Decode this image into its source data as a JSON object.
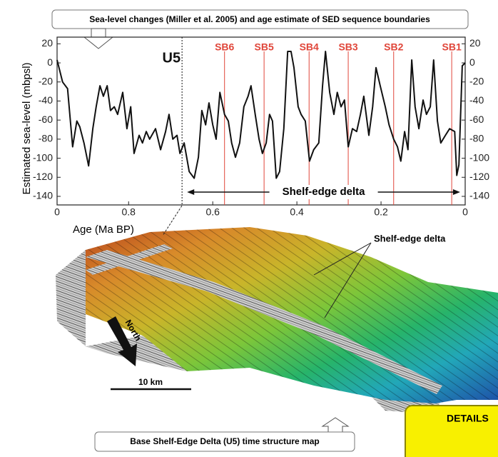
{
  "chart_data": {
    "type": "line",
    "title": "Sea-level changes (Miller et al. 2005) and age estimate of SED sequence boundaries",
    "y_label": "Estimated sea-level (mbpsl)",
    "x_label": "Age (Ma BP)",
    "x_left_end_label": "0",
    "xlim": [
      0.97,
      0
    ],
    "xticks": [
      0.8,
      0.6,
      0.4,
      0.2,
      0
    ],
    "ylim": [
      -149,
      27
    ],
    "yticks": [
      20,
      0,
      -20,
      -40,
      -60,
      -80,
      -100,
      -120,
      -140
    ],
    "y2lim": [
      -149,
      27
    ],
    "y2ticks": [
      20,
      0,
      -20,
      -40,
      -60,
      -80,
      -100,
      -120,
      -140
    ],
    "series": [
      {
        "color": "#111111",
        "x": [
          0.97,
          0.957,
          0.945,
          0.933,
          0.923,
          0.916,
          0.906,
          0.895,
          0.885,
          0.877,
          0.868,
          0.86,
          0.851,
          0.843,
          0.834,
          0.826,
          0.814,
          0.804,
          0.795,
          0.787,
          0.775,
          0.767,
          0.758,
          0.75,
          0.736,
          0.724,
          0.712,
          0.704,
          0.695,
          0.685,
          0.678,
          0.668,
          0.656,
          0.644,
          0.634,
          0.626,
          0.617,
          0.609,
          0.6,
          0.592,
          0.583,
          0.572,
          0.563,
          0.555,
          0.546,
          0.536,
          0.526,
          0.516,
          0.509,
          0.499,
          0.49,
          0.482,
          0.473,
          0.465,
          0.458,
          0.449,
          0.441,
          0.431,
          0.422,
          0.414,
          0.407,
          0.397,
          0.39,
          0.38,
          0.37,
          0.36,
          0.348,
          0.339,
          0.332,
          0.322,
          0.312,
          0.304,
          0.295,
          0.287,
          0.278,
          0.268,
          0.258,
          0.249,
          0.241,
          0.229,
          0.22,
          0.212,
          0.202,
          0.19,
          0.181,
          0.17,
          0.161,
          0.153,
          0.144,
          0.136,
          0.127,
          0.119,
          0.11,
          0.1,
          0.092,
          0.083,
          0.075,
          0.066,
          0.058,
          0.047,
          0.037,
          0.025,
          0.02,
          0.015,
          0.007,
          0
        ],
        "values": [
          3,
          -20,
          -27,
          -88,
          -61,
          -67,
          -84,
          -108,
          -69,
          -46,
          -24,
          -35,
          -24,
          -50,
          -46,
          -54,
          -31,
          -69,
          -46,
          -95,
          -76,
          -84,
          -72,
          -80,
          -69,
          -91,
          -72,
          -54,
          -80,
          -76,
          -95,
          -84,
          -114,
          -121,
          -99,
          -50,
          -65,
          -42,
          -65,
          -80,
          -31,
          -54,
          -61,
          -84,
          -99,
          -84,
          -46,
          -35,
          -24,
          -54,
          -80,
          -95,
          -84,
          -54,
          -61,
          -121,
          -114,
          -69,
          12,
          12,
          -5,
          -46,
          -54,
          -61,
          -103,
          -91,
          -84,
          -24,
          12,
          -31,
          -54,
          -31,
          -46,
          -39,
          -88,
          -69,
          -72,
          -54,
          -35,
          -76,
          -46,
          -5,
          -24,
          -46,
          -65,
          -80,
          -88,
          -103,
          -72,
          -91,
          3,
          -46,
          -69,
          -39,
          -54,
          -46,
          3,
          -61,
          -84,
          -76,
          -69,
          -72,
          -118,
          -107,
          -3,
          0
        ]
      }
    ],
    "boundaries_color": "#e0463a",
    "boundaries": [
      {
        "label": "U5",
        "x": 0.673
      },
      {
        "label": "SB6",
        "x": 0.572
      },
      {
        "label": "SB5",
        "x": 0.478
      },
      {
        "label": "SB4",
        "x": 0.371
      },
      {
        "label": "SB3",
        "x": 0.278
      },
      {
        "label": "SB2",
        "x": 0.17
      },
      {
        "label": "SB1",
        "x": 0.032
      }
    ],
    "span_annotation": {
      "text": "Shelf-edge delta",
      "x_range": [
        0.661,
        0.012
      ]
    }
  },
  "map": {
    "feature_label": "Shelf-edge delta",
    "north_label": "North",
    "scale_label": "10 km",
    "caption": "Base Shelf-Edge Delta (U5) time structure map"
  },
  "button": "DETAILS"
}
